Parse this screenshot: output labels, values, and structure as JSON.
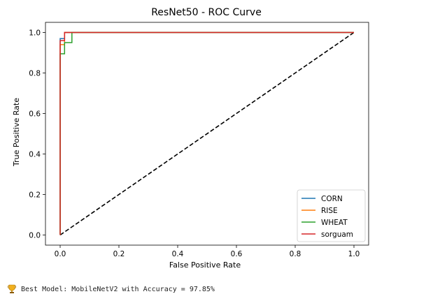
{
  "chart_data": {
    "type": "line",
    "title": "ResNet50 - ROC Curve",
    "xlabel": "False Positive Rate",
    "ylabel": "True Positive Rate",
    "xlim": [
      -0.05,
      1.05
    ],
    "ylim": [
      -0.05,
      1.05
    ],
    "xticks": [
      0.0,
      0.2,
      0.4,
      0.6,
      0.8,
      1.0
    ],
    "yticks": [
      0.0,
      0.2,
      0.4,
      0.6,
      0.8,
      1.0
    ],
    "tick_labels": [
      "0.0",
      "0.2",
      "0.4",
      "0.6",
      "0.8",
      "1.0"
    ],
    "grid": false,
    "legend_position": "bottom-right",
    "series": [
      {
        "name": "CORN",
        "color": "#1f77b4",
        "x": [
          0,
          0,
          0,
          0.015,
          0.015,
          1.0
        ],
        "y": [
          0,
          0.955,
          0.97,
          0.97,
          1.0,
          1.0
        ]
      },
      {
        "name": "RISE",
        "color": "#ff7f0e",
        "x": [
          0,
          0,
          0.015,
          0.015,
          1.0
        ],
        "y": [
          0,
          0.94,
          0.94,
          1.0,
          1.0
        ]
      },
      {
        "name": "WHEAT",
        "color": "#2ca02c",
        "x": [
          0,
          0,
          0.015,
          0.015,
          0.04,
          0.04,
          1.0
        ],
        "y": [
          0,
          0.895,
          0.895,
          0.95,
          0.95,
          1.0,
          1.0
        ]
      },
      {
        "name": "sorguam",
        "color": "#d62728",
        "x": [
          0,
          0,
          0.015,
          0.015,
          1.0
        ],
        "y": [
          0,
          0.96,
          0.96,
          1.0,
          1.0
        ]
      }
    ],
    "reference_line": {
      "x": [
        0,
        1
      ],
      "y": [
        0,
        1
      ],
      "style": "dashed",
      "color": "#000000"
    }
  },
  "result": {
    "icon": "trophy-icon",
    "text": "Best Model: MobileNetV2 with Accuracy = 97.85%"
  }
}
